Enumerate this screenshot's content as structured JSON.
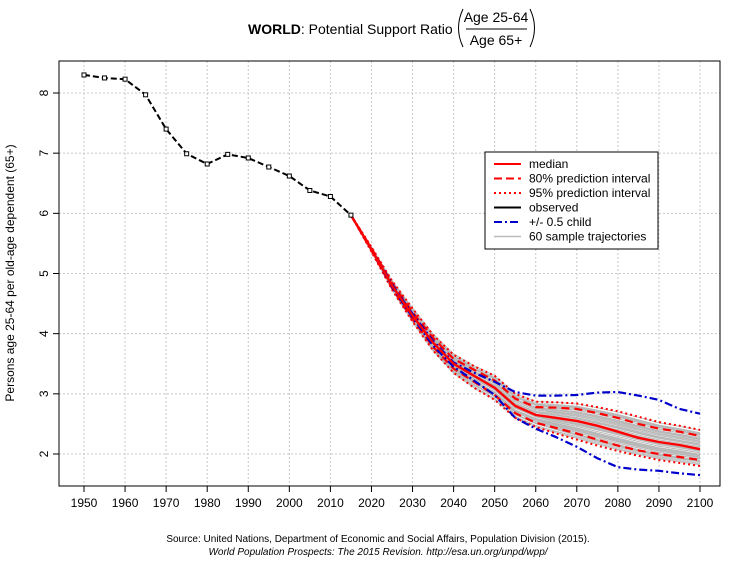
{
  "chart_data": {
    "type": "line",
    "title": {
      "bold": "WORLD",
      "rest": ": Potential Support Ratio",
      "numerator": "Age 25-64",
      "denominator": "Age 65+"
    },
    "ylabel": "Persons age 25-64 per old-age dependent (65+)",
    "xlim": [
      1950,
      2100
    ],
    "ylim": [
      1.75,
      8.4
    ],
    "xticks": [
      1950,
      1960,
      1970,
      1980,
      1990,
      2000,
      2010,
      2020,
      2030,
      2040,
      2050,
      2060,
      2070,
      2080,
      2090,
      2100
    ],
    "xtick_labels": [
      "1950",
      "1960",
      "1970",
      "1980",
      "1990",
      "2000",
      "2010",
      "2020",
      "2030",
      "2040",
      "2050",
      "2060",
      "2070",
      "2080",
      "2090",
      "2100"
    ],
    "yticks": [
      2,
      3,
      4,
      5,
      6,
      7,
      8
    ],
    "ytick_labels": [
      "2",
      "3",
      "4",
      "5",
      "6",
      "7",
      "8"
    ],
    "grid": true,
    "legend_position": "right",
    "legend": [
      {
        "label": "median",
        "color": "#ff0000",
        "style": "solid"
      },
      {
        "label": "80% prediction interval",
        "color": "#ff0000",
        "style": "dashed"
      },
      {
        "label": "95% prediction interval",
        "color": "#ff0000",
        "style": "dotted"
      },
      {
        "label": "observed",
        "color": "#000000",
        "style": "solid"
      },
      {
        "label": "+/- 0.5 child",
        "color": "#0000cc",
        "style": "dashdot"
      },
      {
        "label": "60 sample trajectories",
        "color": "#bbbbbb",
        "style": "solid"
      }
    ],
    "series": [
      {
        "name": "observed",
        "color": "#000000",
        "x": [
          1950,
          1955,
          1960,
          1965,
          1970,
          1975,
          1980,
          1985,
          1990,
          1995,
          2000,
          2005,
          2010,
          2015
        ],
        "y": [
          8.3,
          8.25,
          8.23,
          7.97,
          7.4,
          6.99,
          6.82,
          6.98,
          6.92,
          6.77,
          6.62,
          6.38,
          6.28,
          5.97
        ]
      },
      {
        "name": "median",
        "color": "#ff0000",
        "x": [
          2015,
          2020,
          2025,
          2030,
          2035,
          2040,
          2045,
          2050,
          2055,
          2060,
          2065,
          2070,
          2075,
          2080,
          2085,
          2090,
          2095,
          2100
        ],
        "y": [
          5.97,
          5.4,
          4.8,
          4.3,
          3.85,
          3.5,
          3.3,
          3.1,
          2.8,
          2.65,
          2.6,
          2.55,
          2.47,
          2.37,
          2.27,
          2.2,
          2.15,
          2.08
        ]
      },
      {
        "name": "80% lower",
        "color": "#ff0000",
        "x": [
          2015,
          2020,
          2025,
          2030,
          2035,
          2040,
          2045,
          2050,
          2055,
          2060,
          2065,
          2070,
          2075,
          2080,
          2085,
          2090,
          2095,
          2100
        ],
        "y": [
          5.97,
          5.38,
          4.76,
          4.24,
          3.78,
          3.42,
          3.2,
          2.98,
          2.68,
          2.52,
          2.43,
          2.34,
          2.24,
          2.14,
          2.06,
          2.0,
          1.95,
          1.9
        ]
      },
      {
        "name": "80% upper",
        "color": "#ff0000",
        "x": [
          2015,
          2020,
          2025,
          2030,
          2035,
          2040,
          2045,
          2050,
          2055,
          2060,
          2065,
          2070,
          2075,
          2080,
          2085,
          2090,
          2095,
          2100
        ],
        "y": [
          5.97,
          5.42,
          4.84,
          4.36,
          3.93,
          3.58,
          3.4,
          3.22,
          2.92,
          2.78,
          2.77,
          2.75,
          2.68,
          2.6,
          2.5,
          2.42,
          2.37,
          2.3
        ]
      },
      {
        "name": "95% lower",
        "color": "#ff0000",
        "x": [
          2015,
          2020,
          2025,
          2030,
          2035,
          2040,
          2045,
          2050,
          2055,
          2060,
          2065,
          2070,
          2075,
          2080,
          2085,
          2090,
          2095,
          2100
        ],
        "y": [
          5.97,
          5.36,
          4.73,
          4.2,
          3.72,
          3.35,
          3.1,
          2.9,
          2.6,
          2.45,
          2.34,
          2.24,
          2.14,
          2.05,
          1.97,
          1.9,
          1.85,
          1.8
        ]
      },
      {
        "name": "95% upper",
        "color": "#ff0000",
        "x": [
          2015,
          2020,
          2025,
          2030,
          2035,
          2040,
          2045,
          2050,
          2055,
          2060,
          2065,
          2070,
          2075,
          2080,
          2085,
          2090,
          2095,
          2100
        ],
        "y": [
          5.97,
          5.44,
          4.88,
          4.42,
          3.98,
          3.65,
          3.46,
          3.3,
          3.0,
          2.87,
          2.86,
          2.84,
          2.78,
          2.71,
          2.62,
          2.53,
          2.47,
          2.4
        ]
      },
      {
        "name": "+0.5 child",
        "color": "#0000cc",
        "x": [
          2015,
          2020,
          2025,
          2030,
          2035,
          2040,
          2045,
          2050,
          2055,
          2060,
          2065,
          2070,
          2075,
          2080,
          2085,
          2090,
          2095,
          2100
        ],
        "y": [
          5.97,
          5.4,
          4.82,
          4.33,
          3.88,
          3.52,
          3.35,
          3.2,
          3.03,
          2.97,
          2.97,
          2.98,
          3.02,
          3.03,
          2.97,
          2.9,
          2.75,
          2.67
        ]
      },
      {
        "name": "-0.5 child",
        "color": "#0000cc",
        "x": [
          2015,
          2020,
          2025,
          2030,
          2035,
          2040,
          2045,
          2050,
          2055,
          2060,
          2065,
          2070,
          2075,
          2080,
          2085,
          2090,
          2095,
          2100
        ],
        "y": [
          5.97,
          5.4,
          4.78,
          4.27,
          3.8,
          3.45,
          3.22,
          2.98,
          2.6,
          2.42,
          2.28,
          2.12,
          1.93,
          1.78,
          1.74,
          1.72,
          1.68,
          1.65
        ]
      }
    ],
    "source_line1": "Source: United Nations, Department of Economic and Social Affairs, Population Division (2015).",
    "source_line2": "World Population Prospects: The 2015 Revision. http://esa.un.org/unpd/wpp/"
  }
}
